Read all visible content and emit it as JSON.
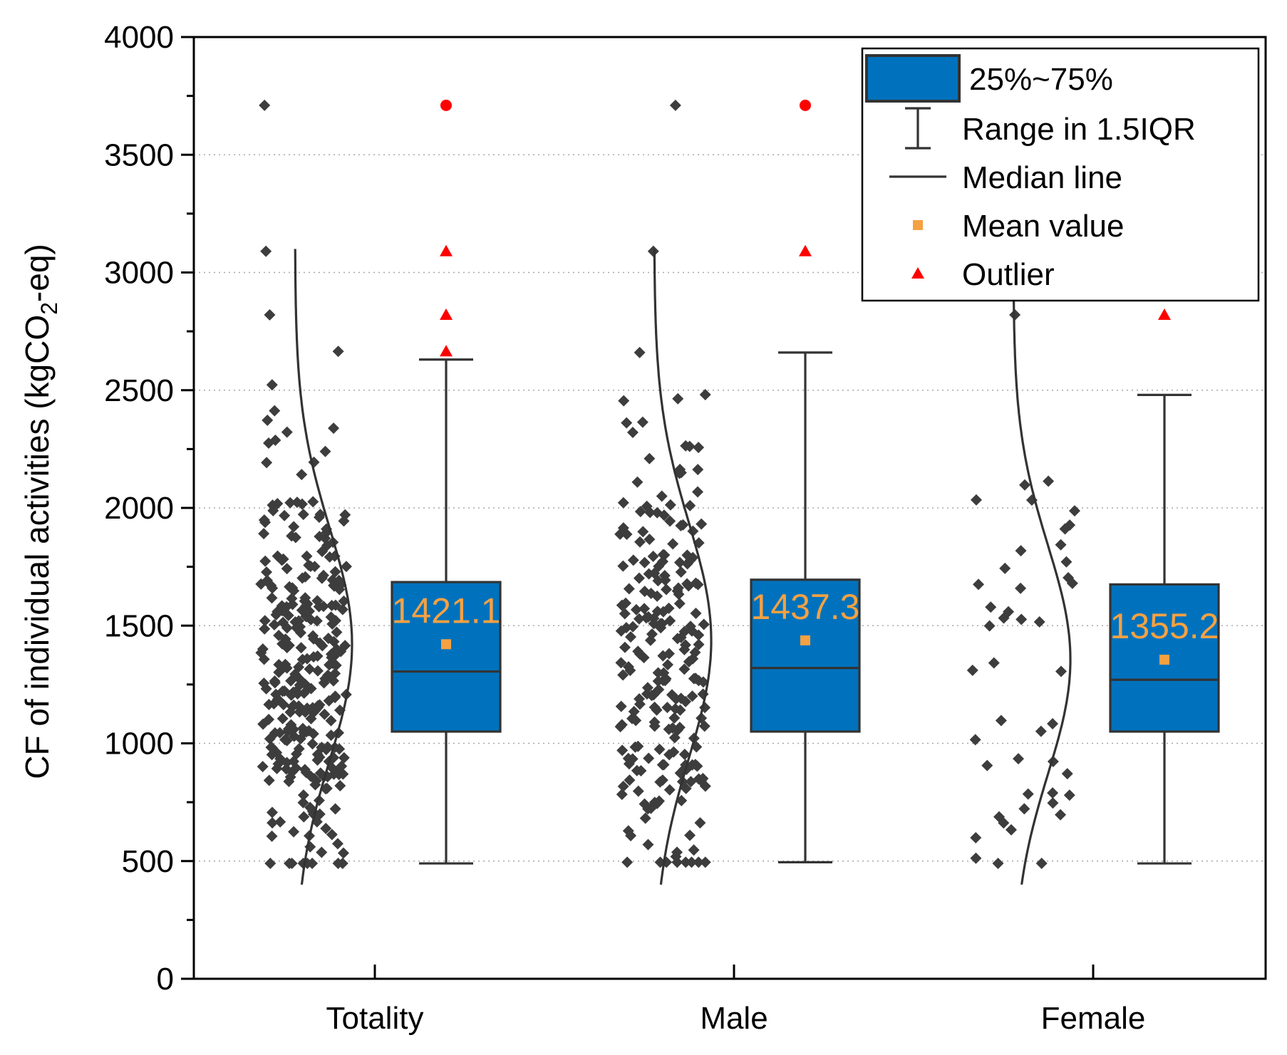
{
  "chart_data": {
    "type": "box",
    "title": "",
    "xlabel": "",
    "ylabel": {
      "main": "CF of individual activities (kgCO",
      "sub": "2",
      "tail": "-eq)"
    },
    "ylim": [
      0,
      4000
    ],
    "y_major_ticks": [
      0,
      500,
      1000,
      1500,
      2000,
      2500,
      3000,
      3500,
      4000
    ],
    "y_minor_step": 250,
    "grid": {
      "horizontal_dotted": [
        500,
        1000,
        1500,
        2000,
        2500,
        3000,
        3500
      ]
    },
    "legend": {
      "placement": "top-right",
      "items": [
        {
          "symbol": "box",
          "label": "25%~75%"
        },
        {
          "symbol": "whisker",
          "label": "Range in 1.5IQR"
        },
        {
          "symbol": "line",
          "label": "Median line"
        },
        {
          "symbol": "square",
          "label": "Mean value"
        },
        {
          "symbol": "triangle",
          "label": "Outlier"
        }
      ]
    },
    "colors": {
      "box": "#0072bd",
      "points": "#3d3d3d",
      "mean": "#f5a142",
      "outlier": "#ff0000",
      "line": "#333333"
    },
    "categories": [
      "Totality",
      "Male",
      "Female"
    ],
    "series": [
      {
        "category": "Totality",
        "q1": 1050,
        "median": 1305,
        "q3": 1685,
        "mean": 1421.1,
        "mean_label": "1421.1",
        "whisker_low": 490,
        "whisker_high": 2630,
        "outliers": [
          {
            "value": 3710,
            "shape": "circle"
          },
          {
            "value": 3090,
            "shape": "triangle"
          },
          {
            "value": 2820,
            "shape": "triangle"
          },
          {
            "value": 2665,
            "shape": "triangle"
          }
        ],
        "count": 300,
        "seed": 11
      },
      {
        "category": "Male",
        "q1": 1050,
        "median": 1320,
        "q3": 1695,
        "mean": 1437.3,
        "mean_label": "1437.3",
        "whisker_low": 495,
        "whisker_high": 2660,
        "outliers": [
          {
            "value": 3710,
            "shape": "circle"
          },
          {
            "value": 3090,
            "shape": "triangle"
          }
        ],
        "count": 230,
        "seed": 23
      },
      {
        "category": "Female",
        "q1": 1050,
        "median": 1270,
        "q3": 1675,
        "mean": 1355.2,
        "mean_label": "1355.2",
        "whisker_low": 490,
        "whisker_high": 2480,
        "outliers": [
          {
            "value": 2820,
            "shape": "triangle"
          }
        ],
        "count": 45,
        "seed": 37
      }
    ]
  }
}
